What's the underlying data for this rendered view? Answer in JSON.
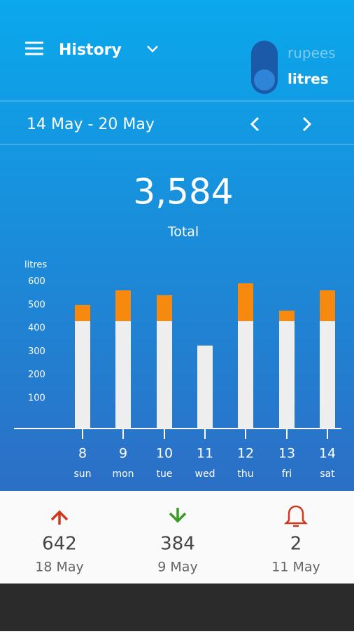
{
  "header": {
    "title": "History",
    "toggle": [
      "rupees",
      "litres"
    ],
    "date_range": "14 May - 20 May"
  },
  "summary": {
    "value": "3,584",
    "label": "Total"
  },
  "chart_data": {
    "type": "bar",
    "stacked": true,
    "y_label": "litres",
    "categories": [
      "8",
      "9",
      "10",
      "11",
      "12",
      "13",
      "14"
    ],
    "x_sublabels": [
      "sun",
      "mon",
      "tue",
      "wed",
      "thu",
      "fri",
      "sat"
    ],
    "series": [
      {
        "color": "#eeeeee",
        "values": [
          461,
          461,
          461,
          356,
          461,
          461,
          461
        ]
      },
      {
        "color": "#f7890f",
        "values": [
          69,
          132,
          111,
          0,
          162,
          45,
          132
        ]
      }
    ],
    "ylim": [
      0,
      650
    ],
    "yticks": [
      100,
      200,
      300,
      400,
      500,
      600
    ]
  },
  "stats": [
    {
      "value": "642",
      "date": "18 May"
    },
    {
      "value": "384",
      "date": "9 May"
    },
    {
      "value": "2",
      "date": "11 May"
    }
  ]
}
